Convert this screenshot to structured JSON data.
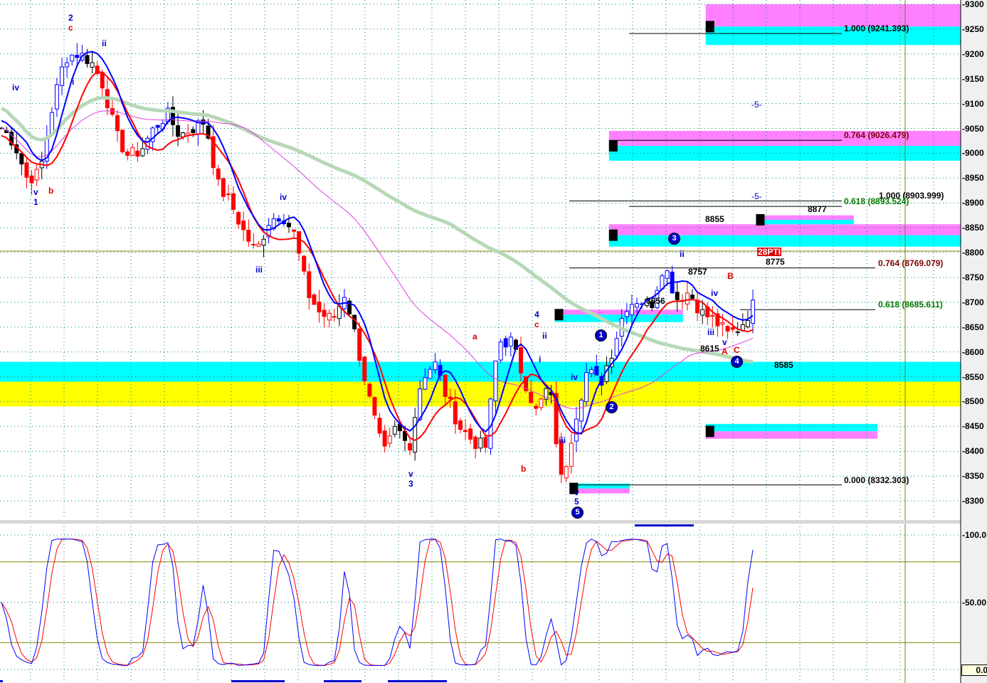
{
  "chart_data": {
    "type": "candlestick",
    "price_axis": {
      "ticks": [
        "9300",
        "9250",
        "9200",
        "9150",
        "9100",
        "9050",
        "9000",
        "8950",
        "8900",
        "8850",
        "8800",
        "8750",
        "8700",
        "8650",
        "8600",
        "8550",
        "8500",
        "8450",
        "8400",
        "8350",
        "8300"
      ],
      "range": [
        8290,
        9310
      ]
    },
    "oscillator_axis": {
      "ticks": [
        "100.0",
        "50.00"
      ],
      "value_box": "0.0",
      "range": [
        0,
        100
      ],
      "levels": [
        80,
        20
      ]
    },
    "close_path": [
      9051,
      9022,
      8950,
      8958,
      9094,
      9194,
      9201,
      9187,
      9137,
      9036,
      8993,
      9008,
      9051,
      9079,
      9036,
      9051,
      9065,
      8936,
      8900,
      8843,
      8800,
      8864,
      8879,
      8836,
      8721,
      8678,
      8664,
      8721,
      8607,
      8492,
      8392,
      8449,
      8406,
      8549,
      8578,
      8506,
      8449,
      8421,
      8406,
      8621,
      8621,
      8549,
      8478,
      8535,
      8334,
      8463,
      8564,
      8535,
      8607,
      8693,
      8707,
      8693,
      8779,
      8707,
      8721,
      8678,
      8664,
      8635,
      8650,
      8693
    ],
    "zones": [
      {
        "top": 9300,
        "mid": 9255,
        "bottom": 9218,
        "from": 0.715,
        "to": 1.0
      },
      {
        "top": 9045,
        "mid": 9015,
        "bottom": 8985,
        "from": 0.617,
        "to": 1.0
      },
      {
        "top": 8857,
        "mid": 8835,
        "bottom": 8812,
        "from": 0.617,
        "to": 1.0
      },
      {
        "top": 8875,
        "mid": 8866,
        "bottom": 8857,
        "from": 0.766,
        "to": 0.865
      },
      {
        "top": 8685,
        "mid": 8675,
        "bottom": 8660,
        "from": 0.562,
        "to": 0.692
      },
      {
        "top": 8455,
        "mid": 8440,
        "bottom": 8425,
        "from": 0.715,
        "to": 0.889,
        "invert": true
      },
      {
        "top": 8335,
        "mid": 8325,
        "bottom": 8315,
        "from": 0.577,
        "to": 0.638,
        "invert": true
      }
    ],
    "support_band": {
      "cyan": [
        8580,
        8540
      ],
      "yellow": [
        8540,
        8490
      ]
    },
    "fib_labels": [
      {
        "text": "1.000 (9241.393)",
        "color": "#000000"
      },
      {
        "text": "0.764 (9026.479)",
        "color": "#800000"
      },
      {
        "text": "1.000 (8903.999)",
        "color": "#000000"
      },
      {
        "text": "0.618 (8893.524)",
        "color": "#007a00"
      },
      {
        "text": "0.764 (8769.079)",
        "color": "#800000"
      },
      {
        "text": "0.618 (8685.611)",
        "color": "#007a00"
      },
      {
        "text": "0.000 (8332.303)",
        "color": "#000000"
      }
    ],
    "price_labels": [
      "8855",
      "8877",
      "8757",
      "8775",
      "8656",
      "8615",
      "8585",
      "28PTI"
    ],
    "wave_labels": [
      "2",
      "c",
      "ii",
      "iv",
      "i",
      "v",
      "1",
      "b",
      "iv",
      "iii",
      "v",
      "3",
      "a",
      "b",
      "4",
      "c",
      "ii",
      "i",
      "iv",
      "iii",
      "v",
      "5",
      "ii",
      "iv",
      "iii",
      "v",
      "A",
      "B",
      "C",
      "-5-",
      "-5-"
    ],
    "wave_circles": [
      "1",
      "2",
      "3",
      "4",
      "5"
    ],
    "colors": {
      "blue_ma": "#0000ff",
      "red_ma": "#ff0000",
      "slow_ma": "#b7d8b7",
      "pink_ma": "#e040e0",
      "cyan": "#00ffff",
      "pink": "#ff80ff",
      "yellow": "#ffff00",
      "grid": "#008080",
      "olive": "#808000"
    }
  }
}
